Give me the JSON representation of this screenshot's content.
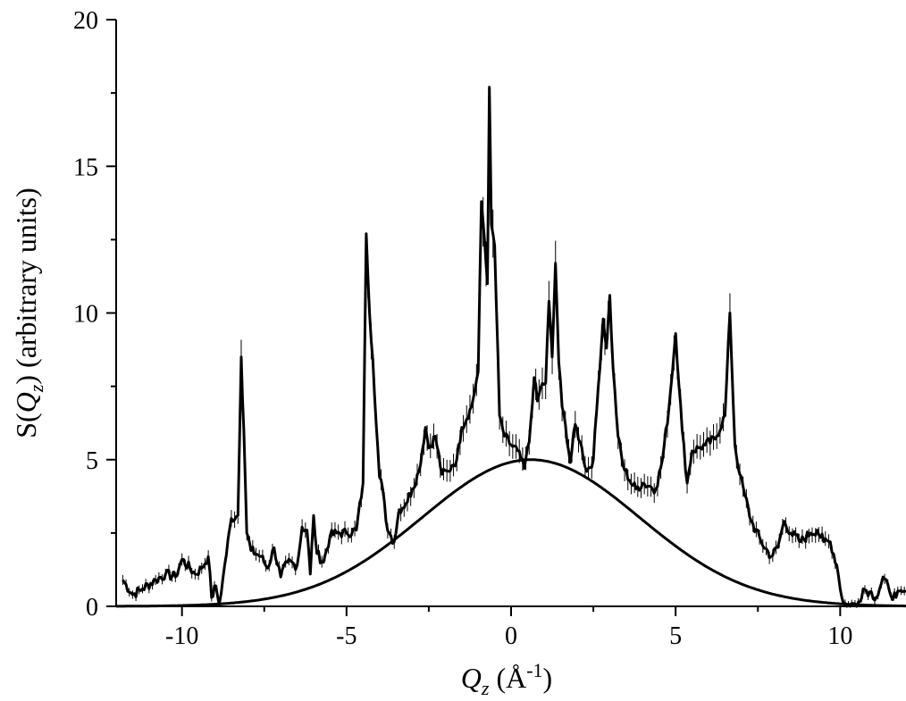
{
  "chart_data": {
    "type": "line",
    "xlabel": {
      "symbol": "Q",
      "sub": "z",
      "unit_open": " (Å",
      "unit_sup": "-1",
      "unit_close": ")"
    },
    "ylabel": {
      "prefix": "S(",
      "symbol": "Q",
      "sub": "z",
      "suffix": ") (arbitrary units)"
    },
    "xlim": [
      -12,
      12
    ],
    "ylim": [
      0,
      20
    ],
    "xticks": [
      -10,
      -5,
      0,
      5,
      10
    ],
    "yticks": [
      0,
      5,
      10,
      15,
      20
    ],
    "grid": false,
    "colors": {
      "line": "#000000",
      "axis": "#000000"
    },
    "series": [
      {
        "style": "line-with-errorbars",
        "x": [
          -11.8,
          -11.5,
          -11.2,
          -10.8,
          -10.5,
          -10.2,
          -10.0,
          -9.6,
          -9.4,
          -9.2,
          -9.1,
          -8.97,
          -8.87,
          -8.75,
          -8.5,
          -8.3,
          -8.2,
          -8.12,
          -8.03,
          -7.9,
          -7.6,
          -7.4,
          -7.2,
          -7.0,
          -6.8,
          -6.5,
          -6.35,
          -6.2,
          -6.1,
          -6.0,
          -5.9,
          -5.7,
          -5.5,
          -5.3,
          -5.0,
          -4.7,
          -4.5,
          -4.4,
          -4.3,
          -4.2,
          -4.0,
          -3.9,
          -3.8,
          -3.7,
          -3.55,
          -3.4,
          -3.2,
          -3.0,
          -2.8,
          -2.6,
          -2.5,
          -2.3,
          -2.1,
          -1.9,
          -1.8,
          -1.65,
          -1.5,
          -1.2,
          -1.0,
          -0.9,
          -0.8,
          -0.72,
          -0.66,
          -0.6,
          -0.5,
          -0.35,
          -0.2,
          0.0,
          0.2,
          0.4,
          0.55,
          0.7,
          0.8,
          0.95,
          1.05,
          1.15,
          1.25,
          1.35,
          1.45,
          1.55,
          1.65,
          1.8,
          1.95,
          2.1,
          2.3,
          2.5,
          2.65,
          2.8,
          2.9,
          3.0,
          3.1,
          3.25,
          3.4,
          3.6,
          3.8,
          4.0,
          4.2,
          4.4,
          4.6,
          4.8,
          5.0,
          5.2,
          5.35,
          5.5,
          5.7,
          5.9,
          6.2,
          6.5,
          6.65,
          6.8,
          6.95,
          7.1,
          7.3,
          7.6,
          7.9,
          8.1,
          8.3,
          8.5,
          8.8,
          9.1,
          9.3,
          9.5,
          9.7,
          9.9,
          10.05,
          10.2,
          10.35,
          10.5,
          10.7,
          10.9,
          11.1,
          11.2,
          11.3,
          11.5,
          11.7,
          11.9,
          12.0
        ],
        "y": [
          0.9,
          0.4,
          0.6,
          0.9,
          1.1,
          1.0,
          1.6,
          1.1,
          1.3,
          1.7,
          0.3,
          0.7,
          0.05,
          1.0,
          3.0,
          3.1,
          8.5,
          6.0,
          2.5,
          1.9,
          1.7,
          1.3,
          2.0,
          1.0,
          1.5,
          1.4,
          2.7,
          2.6,
          1.1,
          3.1,
          1.8,
          1.5,
          2.4,
          2.5,
          2.5,
          2.6,
          4.2,
          12.7,
          10.0,
          8.4,
          4.4,
          4.0,
          2.9,
          2.5,
          2.2,
          3.3,
          3.5,
          4.0,
          4.6,
          6.1,
          5.4,
          5.8,
          4.5,
          4.6,
          4.8,
          5.0,
          6.1,
          6.8,
          8.0,
          13.8,
          12.4,
          11.0,
          17.7,
          13.0,
          12.3,
          6.5,
          5.8,
          5.5,
          5.3,
          4.7,
          5.6,
          7.8,
          7.0,
          7.6,
          7.6,
          10.4,
          8.5,
          11.7,
          8.3,
          6.8,
          6.2,
          4.9,
          6.2,
          5.6,
          4.6,
          5.0,
          7.5,
          9.8,
          8.8,
          10.6,
          8.1,
          5.8,
          4.8,
          4.3,
          4.0,
          4.2,
          4.1,
          4.0,
          5.0,
          6.8,
          9.3,
          6.0,
          4.2,
          5.3,
          5.4,
          5.5,
          5.7,
          6.5,
          10.0,
          5.5,
          4.5,
          3.8,
          2.9,
          2.2,
          1.7,
          2.0,
          2.9,
          2.5,
          2.2,
          2.5,
          2.6,
          2.2,
          2.2,
          1.4,
          0.3,
          0.0,
          0.1,
          0.0,
          0.6,
          0.5,
          0.3,
          0.6,
          1.0,
          0.5,
          0.3,
          0.5,
          0.5
        ]
      },
      {
        "style": "smooth-line",
        "model": "gaussian",
        "amplitude": 5.0,
        "center": 0.6,
        "sigma": 3.3
      }
    ]
  }
}
